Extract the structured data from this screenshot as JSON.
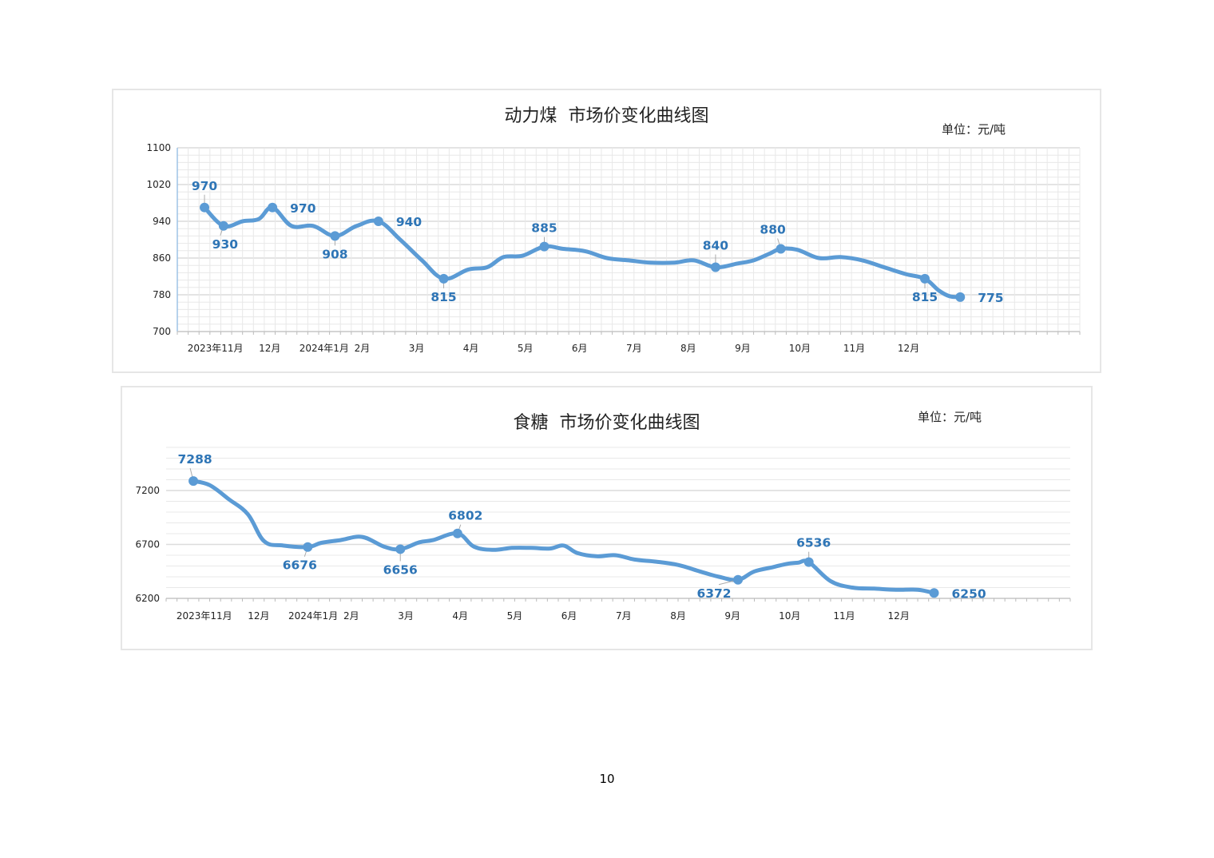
{
  "page": {
    "page_number": "10"
  },
  "colors": {
    "series": "#5b9bd5",
    "label": "#2e75b6",
    "grid": "#e8e8e8",
    "grid_major": "#dcdcdc",
    "axis": "#9dc3e6"
  },
  "chart_data": [
    {
      "type": "line",
      "title": "动力煤  市场价变化曲线图",
      "unit": "单位：元/吨",
      "xlabel": "",
      "ylabel": "",
      "grid": true,
      "x_tick_labels": [
        "2023年11月",
        "12月",
        "2024年1月",
        "2月",
        "3月",
        "4月",
        "5月",
        "6月",
        "7月",
        "8月",
        "9月",
        "10月",
        "11月",
        "12月"
      ],
      "y_ticks": [
        700,
        780,
        860,
        940,
        1020,
        1100
      ],
      "ylim": [
        700,
        1100
      ],
      "x_range": [
        -0.4,
        16.2
      ],
      "series": [
        {
          "x": [
            0.1,
            0.45,
            0.8,
            1.1,
            1.35,
            1.7,
            2.1,
            2.5,
            2.9,
            3.3,
            3.7,
            4.1,
            4.5,
            4.95,
            5.3,
            5.6,
            5.95,
            6.35,
            6.7,
            7.1,
            7.5,
            7.9,
            8.3,
            8.75,
            9.1,
            9.5,
            9.9,
            10.2,
            10.5,
            10.7,
            11.0,
            11.4,
            11.8,
            12.2,
            12.6,
            13.0,
            13.35,
            13.6,
            13.8,
            14.0
          ],
          "y": [
            970,
            930,
            940,
            945,
            970,
            930,
            930,
            908,
            930,
            940,
            900,
            855,
            815,
            835,
            840,
            862,
            865,
            885,
            880,
            875,
            860,
            855,
            850,
            850,
            855,
            840,
            848,
            855,
            870,
            880,
            878,
            860,
            862,
            855,
            840,
            825,
            815,
            790,
            777,
            775
          ]
        }
      ],
      "labeled_points": [
        {
          "x": 0.1,
          "y": 970,
          "label": "970"
        },
        {
          "x": 0.45,
          "y": 930,
          "label": "930"
        },
        {
          "x": 1.35,
          "y": 970,
          "label": "970"
        },
        {
          "x": 2.5,
          "y": 908,
          "label": "908"
        },
        {
          "x": 3.3,
          "y": 940,
          "label": "940"
        },
        {
          "x": 4.5,
          "y": 815,
          "label": "815"
        },
        {
          "x": 6.35,
          "y": 885,
          "label": "885"
        },
        {
          "x": 9.5,
          "y": 840,
          "label": "840"
        },
        {
          "x": 10.7,
          "y": 880,
          "label": "880"
        },
        {
          "x": 13.35,
          "y": 815,
          "label": "815"
        },
        {
          "x": 14.0,
          "y": 775,
          "label": "775"
        }
      ]
    },
    {
      "type": "line",
      "title": "食糖  市场价变化曲线图",
      "unit": "单位：元/吨",
      "xlabel": "",
      "ylabel": "",
      "grid": true,
      "x_tick_labels": [
        "2023年11月",
        "12月",
        "2024年1月",
        "2月",
        "3月",
        "4月",
        "5月",
        "6月",
        "7月",
        "8月",
        "9月",
        "10月",
        "11月",
        "12月"
      ],
      "y_ticks": [
        6200,
        6700,
        7200
      ],
      "ylim": [
        6200,
        7600
      ],
      "x_range": [
        -0.4,
        16.2
      ],
      "series": [
        {
          "x": [
            0.1,
            0.4,
            0.75,
            1.1,
            1.4,
            1.75,
            2.2,
            2.45,
            2.8,
            3.2,
            3.6,
            3.9,
            4.25,
            4.5,
            4.95,
            5.25,
            5.6,
            5.95,
            6.3,
            6.65,
            6.9,
            7.15,
            7.5,
            7.85,
            8.2,
            8.6,
            9.0,
            9.4,
            9.75,
            10.1,
            10.4,
            10.75,
            11.0,
            11.2,
            11.4,
            11.8,
            12.2,
            12.6,
            13.0,
            13.4,
            13.7
          ],
          "y": [
            7288,
            7250,
            7120,
            6980,
            6730,
            6690,
            6676,
            6715,
            6740,
            6770,
            6680,
            6656,
            6720,
            6740,
            6802,
            6680,
            6650,
            6668,
            6668,
            6662,
            6690,
            6620,
            6590,
            6600,
            6560,
            6540,
            6510,
            6450,
            6400,
            6372,
            6450,
            6490,
            6520,
            6530,
            6536,
            6360,
            6300,
            6290,
            6280,
            6280,
            6250
          ]
        }
      ],
      "labeled_points": [
        {
          "x": 0.1,
          "y": 7288,
          "label": "7288"
        },
        {
          "x": 2.2,
          "y": 6676,
          "label": "6676"
        },
        {
          "x": 3.9,
          "y": 6656,
          "label": "6656"
        },
        {
          "x": 4.95,
          "y": 6802,
          "label": "6802"
        },
        {
          "x": 10.1,
          "y": 6372,
          "label": "6372"
        },
        {
          "x": 11.4,
          "y": 6536,
          "label": "6536"
        },
        {
          "x": 13.7,
          "y": 6250,
          "label": "6250"
        }
      ]
    }
  ]
}
